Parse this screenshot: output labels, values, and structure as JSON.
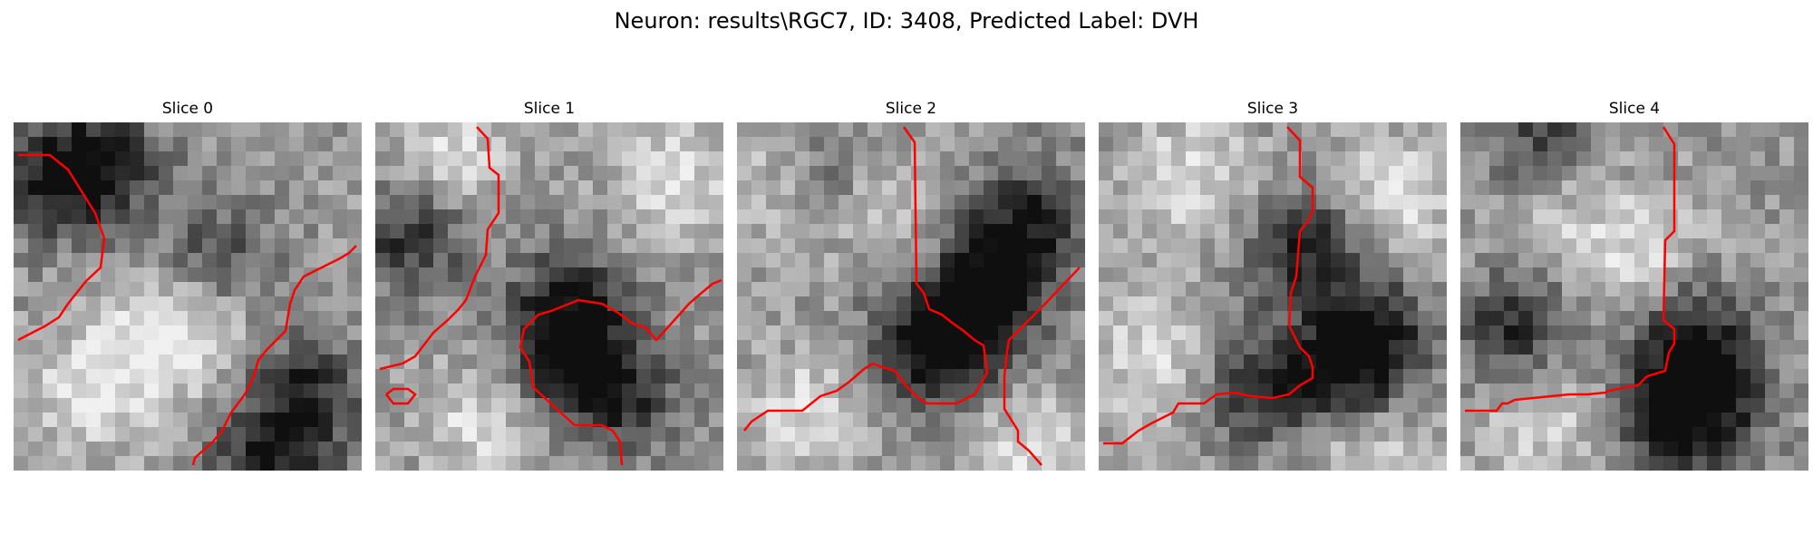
{
  "figure": {
    "suptitle": "Neuron: results\\RGC7, ID: 3408, Predicted Label: DVH",
    "overlay_color": "#ff0000"
  },
  "panels": [
    {
      "title": "Slice 0"
    },
    {
      "title": "Slice 1"
    },
    {
      "title": "Slice 2"
    },
    {
      "title": "Slice 3"
    },
    {
      "title": "Slice 4"
    }
  ]
}
